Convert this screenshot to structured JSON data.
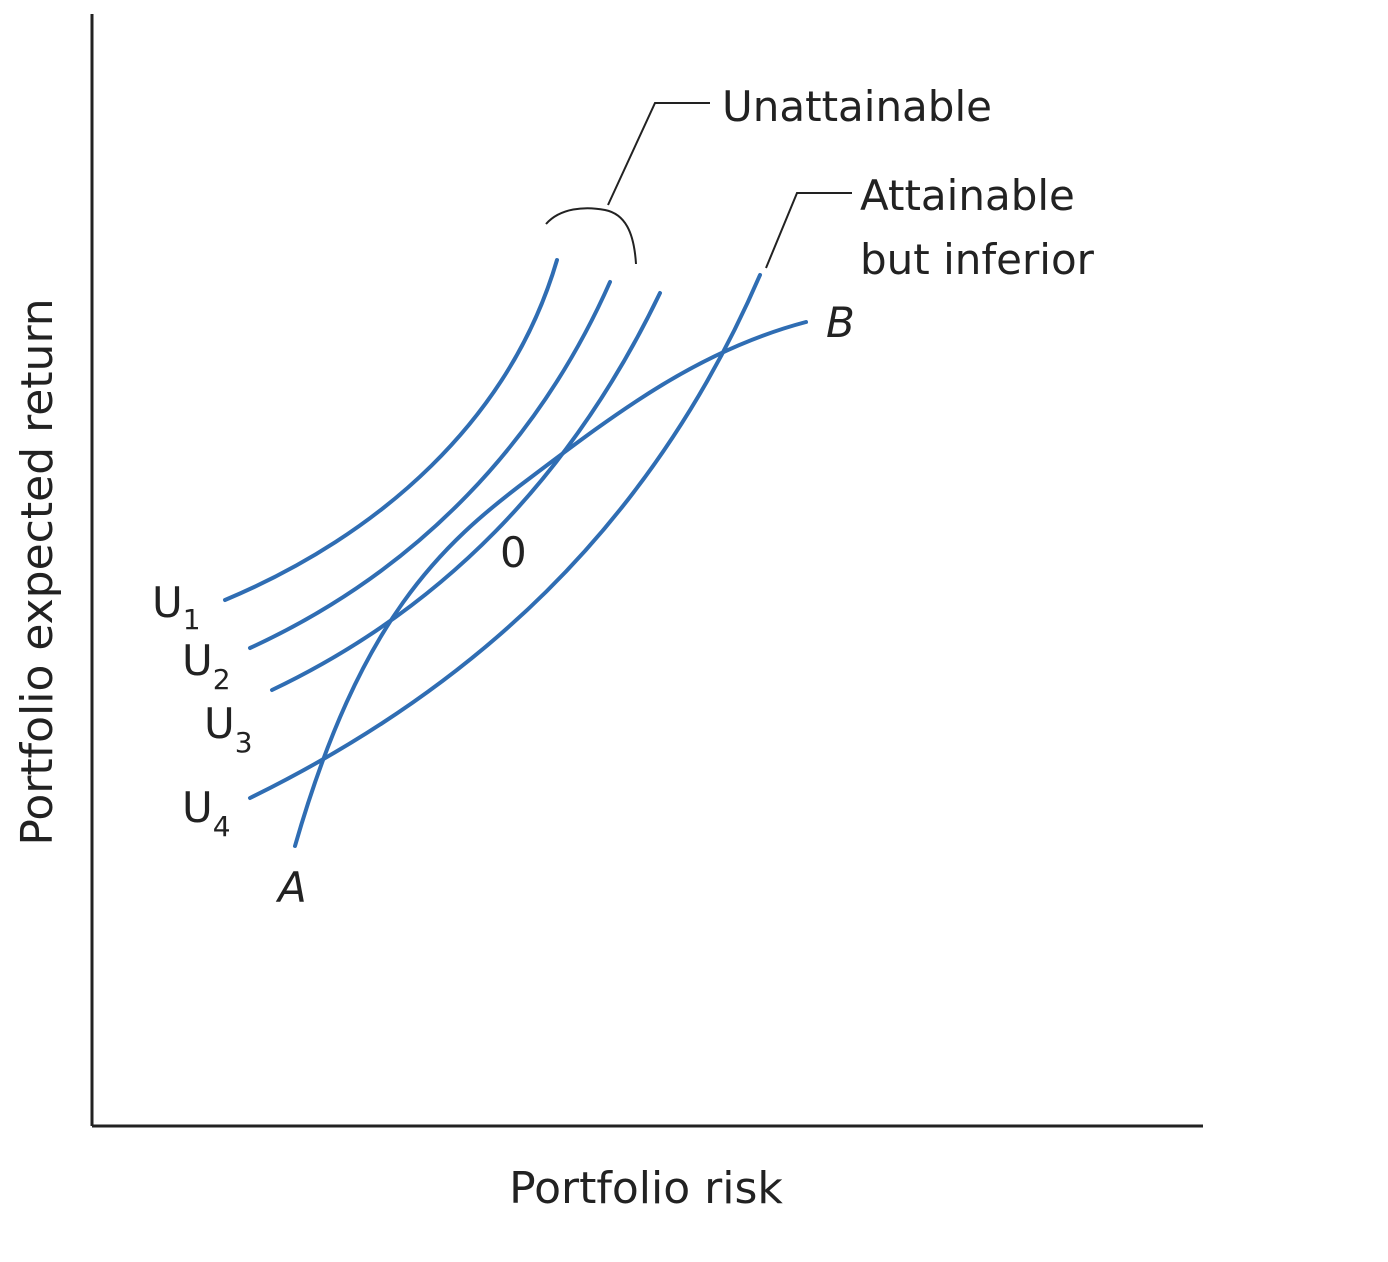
{
  "axes": {
    "x_label": "Portfolio risk",
    "y_label": "Portfolio expected return"
  },
  "annotations": {
    "unattainable": "Unattainable",
    "attainable_line1": "Attainable",
    "attainable_line2": "but inferior",
    "tangent_point": "0",
    "frontier_start": "A",
    "frontier_end": "B"
  },
  "indifference_curves": [
    {
      "letter": "U",
      "sub": "1"
    },
    {
      "letter": "U",
      "sub": "2"
    },
    {
      "letter": "U",
      "sub": "3"
    },
    {
      "letter": "U",
      "sub": "4"
    }
  ],
  "colors": {
    "curve": "#2f6db3",
    "axis": "#222222",
    "background": "#ffffff"
  }
}
